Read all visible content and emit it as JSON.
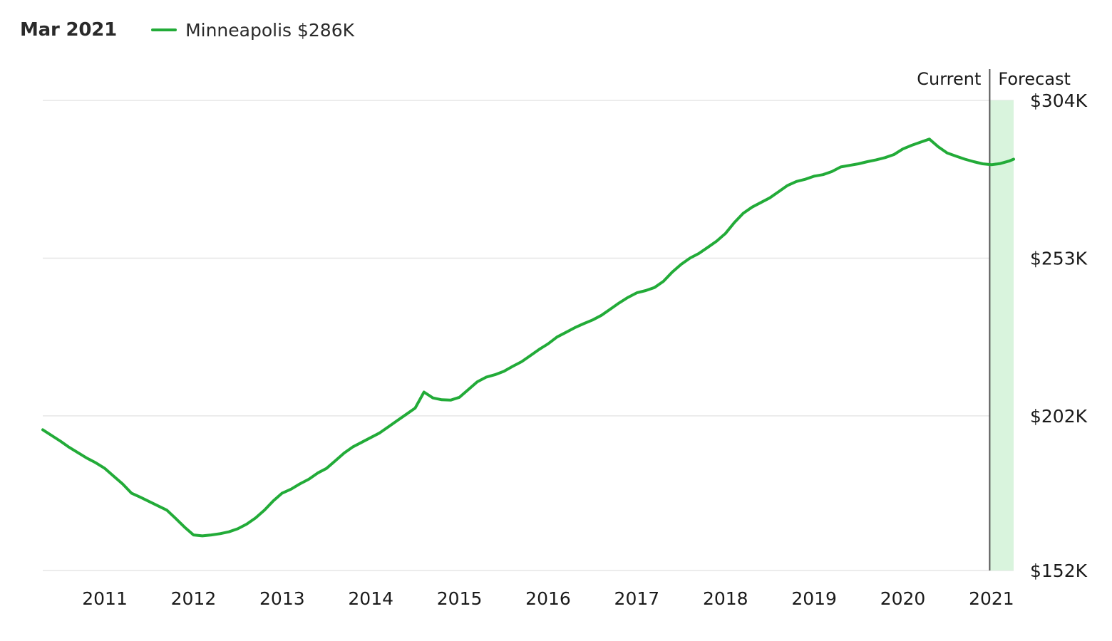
{
  "header": {
    "date": "Mar 2021",
    "legend_label": "Minneapolis $286K"
  },
  "colors": {
    "line": "#22ab38",
    "forecast_band": "#d9f4dd",
    "gridline": "#e6e6e6",
    "divider": "#555555",
    "text": "#1a1a1a"
  },
  "chart_data": {
    "type": "line",
    "x_unit": "year",
    "xlim": [
      2010.3,
      2021.25
    ],
    "ylim": [
      152,
      304
    ],
    "y_ticks": [
      {
        "value": 304,
        "label": "$304K"
      },
      {
        "value": 253,
        "label": "$253K"
      },
      {
        "value": 202,
        "label": "$202K"
      },
      {
        "value": 152,
        "label": "$152K"
      }
    ],
    "x_ticks": [
      {
        "value": 2011,
        "label": "2011"
      },
      {
        "value": 2012,
        "label": "2012"
      },
      {
        "value": 2013,
        "label": "2013"
      },
      {
        "value": 2014,
        "label": "2014"
      },
      {
        "value": 2015,
        "label": "2015"
      },
      {
        "value": 2016,
        "label": "2016"
      },
      {
        "value": 2017,
        "label": "2017"
      },
      {
        "value": 2018,
        "label": "2018"
      },
      {
        "value": 2019,
        "label": "2019"
      },
      {
        "value": 2020,
        "label": "2020"
      },
      {
        "value": 2021,
        "label": "2021"
      }
    ],
    "annotations": {
      "current_label": "Current",
      "forecast_label": "Forecast",
      "divider_x": 2020.98
    },
    "forecast_range": [
      2020.98,
      2021.25
    ],
    "series": [
      {
        "name": "Minneapolis",
        "x": [
          2010.3,
          2010.5,
          2010.6,
          2010.8,
          2010.9,
          2011.0,
          2011.1,
          2011.2,
          2011.3,
          2011.4,
          2011.5,
          2011.7,
          2011.8,
          2011.9,
          2012.0,
          2012.1,
          2012.2,
          2012.3,
          2012.4,
          2012.5,
          2012.6,
          2012.7,
          2012.8,
          2012.9,
          2013.0,
          2013.1,
          2013.2,
          2013.3,
          2013.4,
          2013.5,
          2013.6,
          2013.7,
          2013.8,
          2013.9,
          2014.0,
          2014.1,
          2014.2,
          2014.3,
          2014.4,
          2014.5,
          2014.6,
          2014.7,
          2014.8,
          2014.9,
          2015.0,
          2015.1,
          2015.2,
          2015.3,
          2015.4,
          2015.5,
          2015.6,
          2015.7,
          2015.8,
          2015.9,
          2016.0,
          2016.1,
          2016.2,
          2016.3,
          2016.4,
          2016.5,
          2016.6,
          2016.7,
          2016.8,
          2016.9,
          2017.0,
          2017.1,
          2017.2,
          2017.3,
          2017.4,
          2017.5,
          2017.6,
          2017.7,
          2017.8,
          2017.9,
          2018.0,
          2018.1,
          2018.2,
          2018.3,
          2018.4,
          2018.5,
          2018.6,
          2018.7,
          2018.8,
          2018.9,
          2019.0,
          2019.1,
          2019.2,
          2019.3,
          2019.4,
          2019.5,
          2019.6,
          2019.7,
          2019.8,
          2019.9,
          2020.0,
          2020.1,
          2020.2,
          2020.3,
          2020.4,
          2020.5,
          2020.6,
          2020.7,
          2020.8,
          2020.9,
          2021.0,
          2021.1,
          2021.2,
          2021.25
        ],
        "values": [
          197.5,
          193.8,
          191.8,
          188.3,
          186.8,
          185.0,
          182.5,
          180.0,
          177.0,
          175.7,
          174.3,
          171.5,
          168.8,
          166.0,
          163.5,
          163.2,
          163.5,
          163.9,
          164.5,
          165.5,
          167.0,
          169.0,
          171.5,
          174.5,
          177.0,
          178.3,
          180.0,
          181.5,
          183.5,
          185.0,
          187.5,
          190.0,
          192.0,
          193.5,
          195.0,
          196.5,
          198.5,
          200.5,
          202.5,
          204.5,
          209.7,
          207.8,
          207.2,
          207.1,
          208.0,
          210.5,
          213.0,
          214.5,
          215.3,
          216.4,
          218.0,
          219.5,
          221.5,
          223.5,
          225.3,
          227.5,
          229.0,
          230.5,
          231.8,
          233.0,
          234.5,
          236.5,
          238.5,
          240.3,
          241.8,
          242.5,
          243.5,
          245.5,
          248.5,
          251.0,
          253.0,
          254.5,
          256.5,
          258.5,
          261.0,
          264.5,
          267.5,
          269.5,
          271.0,
          272.5,
          274.5,
          276.5,
          277.8,
          278.5,
          279.5,
          280.0,
          281.0,
          282.5,
          283.0,
          283.5,
          284.2,
          284.8,
          285.5,
          286.5,
          288.3,
          289.5,
          290.5,
          291.5,
          289.0,
          287.0,
          286.0,
          285.0,
          284.2,
          283.5,
          283.2,
          283.6,
          284.4,
          285.0
        ]
      }
    ]
  }
}
